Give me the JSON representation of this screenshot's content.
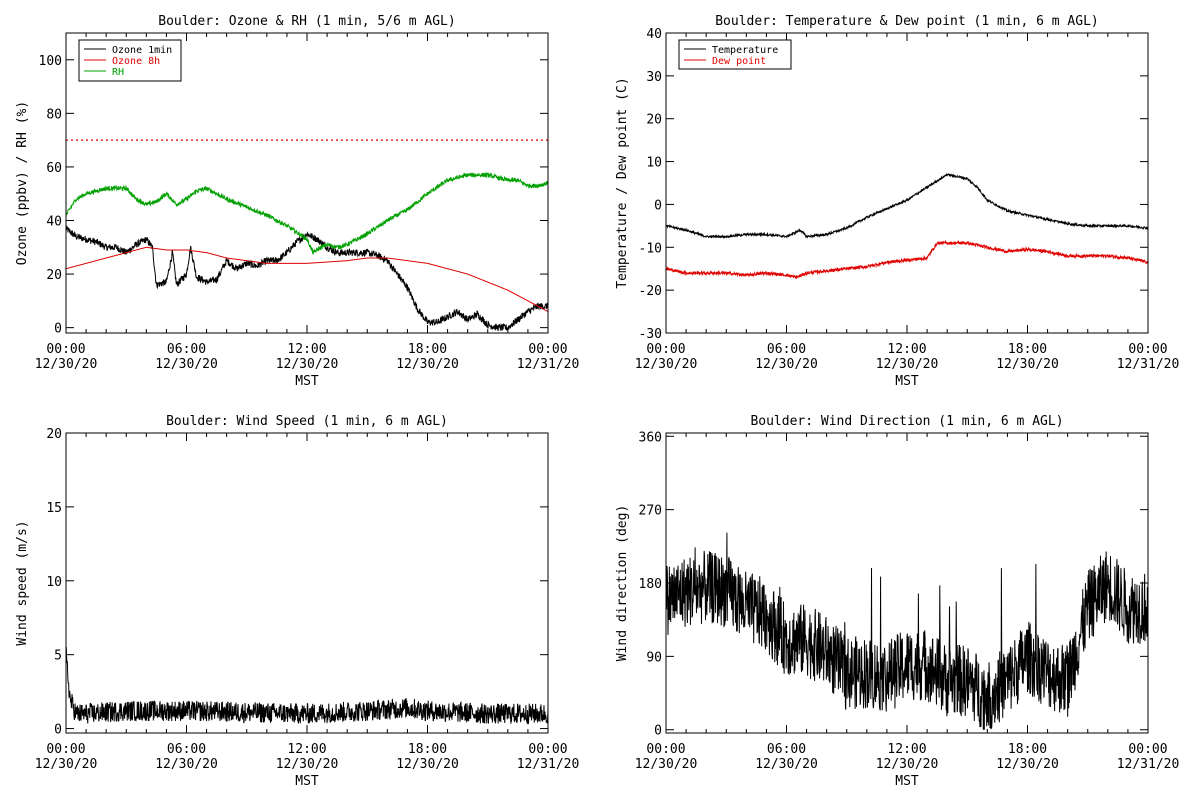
{
  "chart_data": [
    {
      "id": "ozone",
      "type": "line",
      "title": "Boulder: Ozone & RH (1 min, 5/6 m AGL)",
      "ylabel": "Ozone (ppbv) / RH (%)",
      "xlabel": "MST",
      "xlim_hours": [
        0,
        24
      ],
      "ylim": [
        -2,
        110
      ],
      "yticks": [
        0,
        20,
        40,
        60,
        80,
        100
      ],
      "xticks": [
        {
          "time": "00:00",
          "date": "12/30/20"
        },
        {
          "time": "06:00",
          "date": "12/30/20"
        },
        {
          "time": "12:00",
          "date": "12/30/20"
        },
        {
          "time": "18:00",
          "date": "12/30/20"
        },
        {
          "time": "00:00",
          "date": "12/31/20"
        }
      ],
      "legend_position": "top-left",
      "hline": {
        "y": 70,
        "style": "dotted",
        "color": "#e00000"
      },
      "series": [
        {
          "name": "Ozone 1min",
          "color": "#000000",
          "noise": 1.3,
          "points": [
            [
              0,
              37
            ],
            [
              0.5,
              34
            ],
            [
              1,
              33
            ],
            [
              1.5,
              32
            ],
            [
              2,
              30
            ],
            [
              2.5,
              30
            ],
            [
              3,
              28
            ],
            [
              3.5,
              31
            ],
            [
              4,
              33
            ],
            [
              4.3,
              30
            ],
            [
              4.5,
              16
            ],
            [
              5,
              17
            ],
            [
              5.3,
              28
            ],
            [
              5.5,
              16
            ],
            [
              6,
              20
            ],
            [
              6.2,
              30
            ],
            [
              6.5,
              19
            ],
            [
              7,
              17
            ],
            [
              7.5,
              18
            ],
            [
              8,
              25
            ],
            [
              8.5,
              22
            ],
            [
              9,
              24
            ],
            [
              9.5,
              23
            ],
            [
              10,
              25
            ],
            [
              10.5,
              25
            ],
            [
              11,
              28
            ],
            [
              11.5,
              32
            ],
            [
              12,
              35
            ],
            [
              12.5,
              33
            ],
            [
              13,
              30
            ],
            [
              13.5,
              28
            ],
            [
              14,
              28
            ],
            [
              14.5,
              28
            ],
            [
              15,
              28
            ],
            [
              15.5,
              27
            ],
            [
              16,
              25
            ],
            [
              16.5,
              20
            ],
            [
              17,
              15
            ],
            [
              17.5,
              7
            ],
            [
              18,
              2
            ],
            [
              18.5,
              2
            ],
            [
              19,
              4
            ],
            [
              19.5,
              6
            ],
            [
              20,
              3
            ],
            [
              20.5,
              5
            ],
            [
              21,
              1
            ],
            [
              21.5,
              0
            ],
            [
              22,
              0
            ],
            [
              22.5,
              3
            ],
            [
              23,
              6
            ],
            [
              23.5,
              8
            ],
            [
              24,
              8
            ]
          ]
        },
        {
          "name": "Ozone 8h",
          "color": "#e00000",
          "noise": 0,
          "points": [
            [
              0,
              22
            ],
            [
              1,
              24
            ],
            [
              2,
              26
            ],
            [
              3,
              28
            ],
            [
              4,
              30
            ],
            [
              5,
              29
            ],
            [
              6,
              29
            ],
            [
              7,
              28
            ],
            [
              8,
              26
            ],
            [
              9,
              25
            ],
            [
              10,
              24
            ],
            [
              11,
              24
            ],
            [
              12,
              24
            ],
            [
              13,
              24.5
            ],
            [
              14,
              25
            ],
            [
              15,
              26
            ],
            [
              16,
              26
            ],
            [
              17,
              25
            ],
            [
              18,
              24
            ],
            [
              19,
              22
            ],
            [
              20,
              20
            ],
            [
              21,
              17
            ],
            [
              22,
              14
            ],
            [
              23,
              10
            ],
            [
              24,
              6
            ]
          ]
        },
        {
          "name": "RH",
          "color": "#00a000",
          "noise": 0.8,
          "points": [
            [
              0,
              42
            ],
            [
              0.5,
              48
            ],
            [
              1,
              50
            ],
            [
              1.5,
              51
            ],
            [
              2,
              52
            ],
            [
              2.5,
              52
            ],
            [
              3,
              52
            ],
            [
              3.5,
              48
            ],
            [
              4,
              46
            ],
            [
              4.5,
              47
            ],
            [
              5,
              50
            ],
            [
              5.5,
              46
            ],
            [
              6,
              48
            ],
            [
              6.5,
              51
            ],
            [
              7,
              52
            ],
            [
              7.5,
              50
            ],
            [
              8,
              48
            ],
            [
              9,
              45
            ],
            [
              10,
              42
            ],
            [
              11,
              38
            ],
            [
              12,
              33
            ],
            [
              12.3,
              28
            ],
            [
              12.7,
              30
            ],
            [
              13,
              31
            ],
            [
              13.5,
              30
            ],
            [
              14,
              31
            ],
            [
              15,
              35
            ],
            [
              16,
              40
            ],
            [
              17,
              44
            ],
            [
              18,
              50
            ],
            [
              19,
              55
            ],
            [
              20,
              57
            ],
            [
              21,
              57
            ],
            [
              22,
              55
            ],
            [
              22.5,
              55
            ],
            [
              23,
              53
            ],
            [
              23.5,
              53
            ],
            [
              24,
              54
            ]
          ]
        }
      ]
    },
    {
      "id": "temp",
      "type": "line",
      "title": "Boulder: Temperature & Dew point (1 min, 6 m AGL)",
      "ylabel": "Temperature / Dew point (C)",
      "xlabel": "MST",
      "xlim_hours": [
        0,
        24
      ],
      "ylim": [
        -30,
        40
      ],
      "yticks": [
        -30,
        -20,
        -10,
        0,
        10,
        20,
        30,
        40
      ],
      "xticks": [
        {
          "time": "00:00",
          "date": "12/30/20"
        },
        {
          "time": "06:00",
          "date": "12/30/20"
        },
        {
          "time": "12:00",
          "date": "12/30/20"
        },
        {
          "time": "18:00",
          "date": "12/30/20"
        },
        {
          "time": "00:00",
          "date": "12/31/20"
        }
      ],
      "legend_position": "top-left",
      "series": [
        {
          "name": "Temperature",
          "color": "#000000",
          "noise": 0.25,
          "points": [
            [
              0,
              -5
            ],
            [
              1,
              -6
            ],
            [
              2,
              -7.5
            ],
            [
              3,
              -7.5
            ],
            [
              4,
              -7
            ],
            [
              5,
              -7
            ],
            [
              6,
              -7.5
            ],
            [
              6.7,
              -6
            ],
            [
              7,
              -7.5
            ],
            [
              8,
              -7
            ],
            [
              9,
              -5.5
            ],
            [
              10,
              -3
            ],
            [
              11,
              -1
            ],
            [
              12,
              1
            ],
            [
              13,
              4
            ],
            [
              14,
              7
            ],
            [
              15,
              6
            ],
            [
              15.5,
              4
            ],
            [
              16,
              1
            ],
            [
              17,
              -1.5
            ],
            [
              18,
              -2.5
            ],
            [
              19,
              -3.5
            ],
            [
              20,
              -4.5
            ],
            [
              21,
              -5
            ],
            [
              22,
              -5
            ],
            [
              23,
              -5
            ],
            [
              24,
              -5.5
            ]
          ]
        },
        {
          "name": "Dew point",
          "color": "#e00000",
          "noise": 0.35,
          "points": [
            [
              0,
              -15
            ],
            [
              1,
              -16
            ],
            [
              2,
              -16
            ],
            [
              3,
              -16
            ],
            [
              4,
              -16.5
            ],
            [
              5,
              -16
            ],
            [
              6,
              -16.5
            ],
            [
              6.5,
              -17
            ],
            [
              7,
              -16
            ],
            [
              8,
              -15.5
            ],
            [
              9,
              -15
            ],
            [
              10,
              -14.5
            ],
            [
              11,
              -13.5
            ],
            [
              12,
              -13
            ],
            [
              13,
              -12.5
            ],
            [
              13.5,
              -9
            ],
            [
              14,
              -9
            ],
            [
              15,
              -9
            ],
            [
              16,
              -10
            ],
            [
              17,
              -11
            ],
            [
              18,
              -10.5
            ],
            [
              19,
              -11
            ],
            [
              20,
              -12
            ],
            [
              21,
              -12
            ],
            [
              22,
              -12
            ],
            [
              23,
              -12.5
            ],
            [
              24,
              -13.5
            ]
          ]
        }
      ]
    },
    {
      "id": "wspd",
      "type": "line",
      "title": "Boulder: Wind Speed (1 min, 6 m AGL)",
      "ylabel": "Wind speed (m/s)",
      "xlabel": "MST",
      "xlim_hours": [
        0,
        24
      ],
      "ylim": [
        -0.3,
        20
      ],
      "yticks": [
        0,
        5,
        10,
        15,
        20
      ],
      "xticks": [
        {
          "time": "00:00",
          "date": "12/30/20"
        },
        {
          "time": "06:00",
          "date": "12/30/20"
        },
        {
          "time": "12:00",
          "date": "12/30/20"
        },
        {
          "time": "18:00",
          "date": "12/30/20"
        },
        {
          "time": "00:00",
          "date": "12/31/20"
        }
      ],
      "series": [
        {
          "name": "",
          "color": "#000000",
          "noise": 0.7,
          "floor": 0,
          "points": [
            [
              0,
              5
            ],
            [
              0.2,
              2
            ],
            [
              0.5,
              1
            ],
            [
              1,
              1
            ],
            [
              3,
              1.2
            ],
            [
              6,
              1.2
            ],
            [
              9,
              1.1
            ],
            [
              12,
              1
            ],
            [
              15,
              1.2
            ],
            [
              17,
              1.4
            ],
            [
              18,
              1.2
            ],
            [
              21,
              1
            ],
            [
              24,
              1
            ]
          ]
        }
      ]
    },
    {
      "id": "wdir",
      "type": "line",
      "title": "Boulder: Wind Direction (1 min, 6 m AGL)",
      "ylabel": "Wind direction (deg)",
      "xlabel": "MST",
      "xlim_hours": [
        0,
        24
      ],
      "ylim": [
        -4,
        364
      ],
      "yticks": [
        0,
        90,
        180,
        270,
        360
      ],
      "xticks": [
        {
          "time": "00:00",
          "date": "12/30/20"
        },
        {
          "time": "06:00",
          "date": "12/30/20"
        },
        {
          "time": "12:00",
          "date": "12/30/20"
        },
        {
          "time": "18:00",
          "date": "12/30/20"
        },
        {
          "time": "00:00",
          "date": "12/31/20"
        }
      ],
      "series": [
        {
          "name": "",
          "color": "#000000",
          "noise": 45,
          "floor": 0,
          "ceil": 360,
          "spikes": 60,
          "points": [
            [
              0,
              160
            ],
            [
              1,
              170
            ],
            [
              2,
              175
            ],
            [
              3,
              170
            ],
            [
              4,
              150
            ],
            [
              5,
              140
            ],
            [
              6,
              110
            ],
            [
              7,
              110
            ],
            [
              8,
              95
            ],
            [
              9,
              70
            ],
            [
              10,
              70
            ],
            [
              11,
              65
            ],
            [
              12,
              80
            ],
            [
              13,
              80
            ],
            [
              14,
              60
            ],
            [
              15,
              60
            ],
            [
              16,
              40
            ],
            [
              17,
              60
            ],
            [
              18,
              90
            ],
            [
              19,
              70
            ],
            [
              20,
              60
            ],
            [
              21,
              150
            ],
            [
              22,
              180
            ],
            [
              23,
              150
            ],
            [
              24,
              150
            ]
          ]
        }
      ]
    }
  ]
}
